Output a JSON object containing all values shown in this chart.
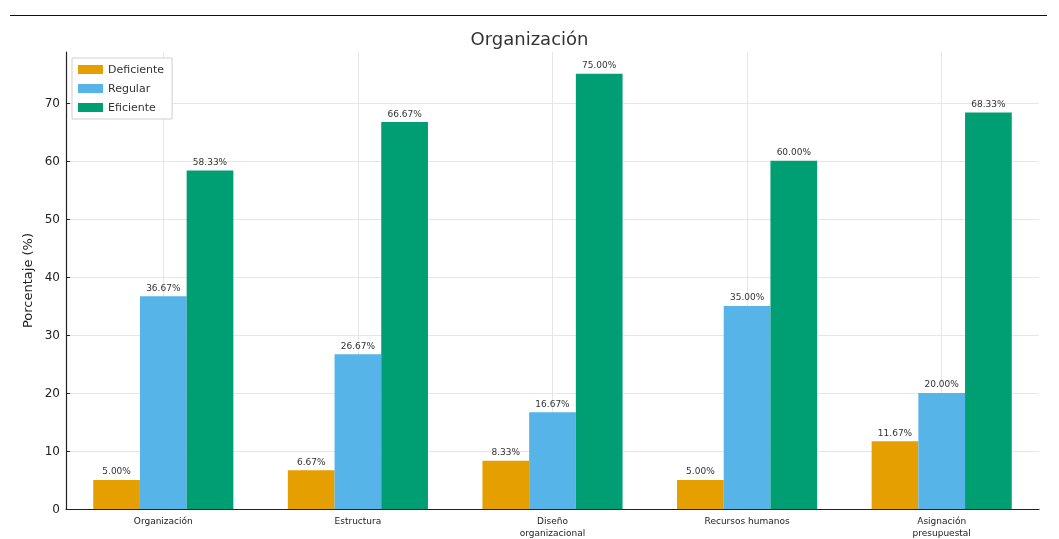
{
  "chart_data": {
    "type": "bar",
    "title": "Organización",
    "ylabel": "Porcentaje (%)",
    "categories": [
      "Organización",
      "Estructura",
      "Diseño\norganizacional",
      "Recursos humanos",
      "Asignación\npresupuestal"
    ],
    "series": [
      {
        "name": "Deficiente",
        "color": "#e69f00",
        "values": [
          5.0,
          6.67,
          8.33,
          5.0,
          11.67
        ],
        "value_labels": [
          "5.00%",
          "6.67%",
          "8.33%",
          "5.00%",
          "11.67%"
        ]
      },
      {
        "name": "Regular",
        "color": "#56b4e9",
        "values": [
          36.67,
          26.67,
          16.67,
          35.0,
          20.0
        ],
        "value_labels": [
          "36.67%",
          "26.67%",
          "16.67%",
          "35.00%",
          "20.00%"
        ]
      },
      {
        "name": "Eficiente",
        "color": "#009e73",
        "values": [
          58.33,
          66.67,
          75.0,
          60.0,
          68.33
        ],
        "value_labels": [
          "58.33%",
          "66.67%",
          "75.00%",
          "60.00%",
          "68.33%"
        ]
      }
    ],
    "ylim": [
      0,
      78.75
    ],
    "yticks": [
      0,
      10,
      20,
      30,
      40,
      50,
      60,
      70
    ],
    "grid": true,
    "legend": "top left"
  }
}
